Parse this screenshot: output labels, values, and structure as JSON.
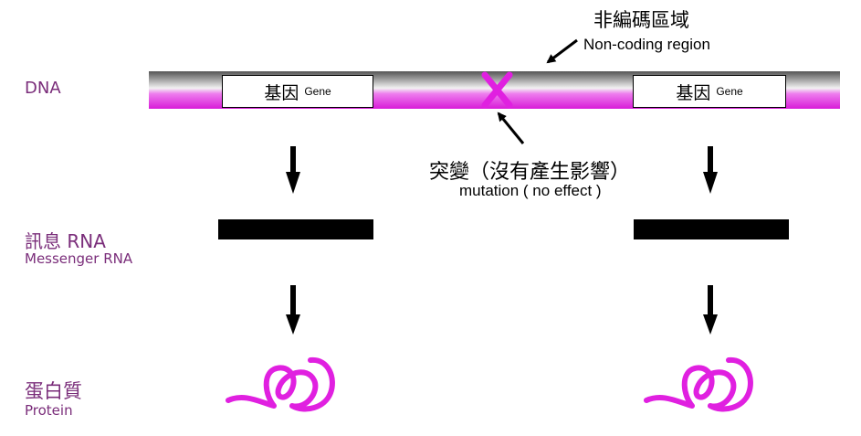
{
  "row_labels": {
    "dna": "DNA",
    "mrna_zh": "訊息 RNA",
    "mrna_en": "Messenger RNA",
    "protein_zh": "蛋白質",
    "protein_en": "Protein"
  },
  "genes": [
    {
      "zh": "基因",
      "en": "Gene"
    },
    {
      "zh": "基因",
      "en": "Gene"
    }
  ],
  "noncoding": {
    "zh": "非編碼區域",
    "en": "Non-coding region"
  },
  "mutation": {
    "zh": "突變（沒有產生影響）",
    "en": "mutation ( no effect )"
  },
  "colors": {
    "label": "#7a2d7a",
    "mutation_mark": "#e020e0",
    "protein_coil": "#e020e0",
    "rna": "#000000"
  }
}
